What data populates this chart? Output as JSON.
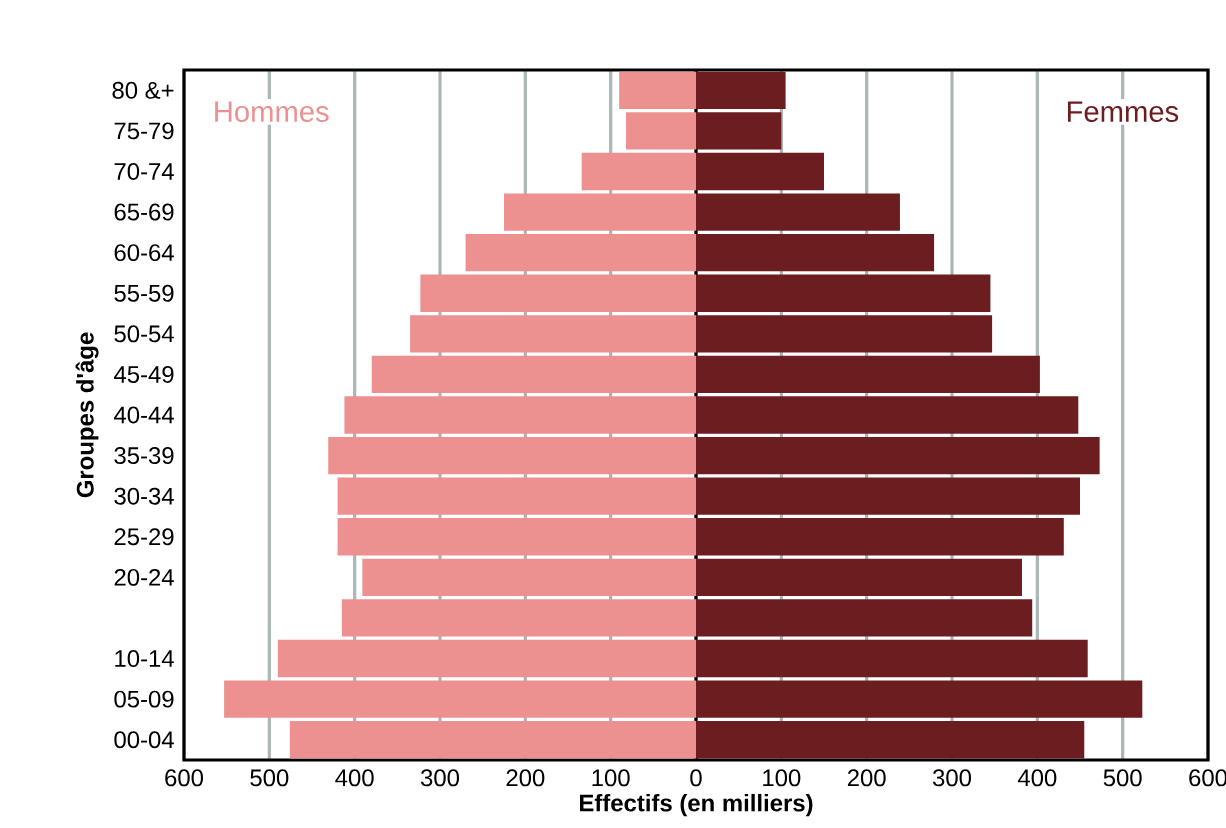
{
  "chart_data": {
    "type": "bar",
    "orientation": "horizontal",
    "stacked": true,
    "xlabel": "Effectifs (en milliers)",
    "ylabel": "Groupes d'âge",
    "categories": [
      "80 &+",
      "75-79",
      "70-74",
      "65-69",
      "60-64",
      "55-59",
      "50-54",
      "45-49",
      "40-44",
      "35-39",
      "30-34",
      "25-29",
      "20-24",
      null,
      "10-14",
      "05-09",
      "00-04"
    ],
    "series": [
      {
        "name": "Hommes",
        "color": "#ec9090",
        "values": [
          -90,
          -82,
          -134,
          -225,
          -270,
          -323,
          -335,
          -380,
          -412,
          -431,
          -420,
          -420,
          -391,
          -415,
          -490,
          -553,
          -476
        ]
      },
      {
        "name": "Femmes",
        "color": "#6b1d20",
        "values": [
          105,
          100,
          150,
          239,
          279,
          345,
          347,
          403,
          448,
          473,
          450,
          431,
          382,
          394,
          459,
          523,
          455
        ]
      }
    ],
    "xlim": [
      -600,
      600
    ],
    "xticks": [
      {
        "value": -600,
        "label": "600"
      },
      {
        "value": -500,
        "label": "500"
      },
      {
        "value": -400,
        "label": "400"
      },
      {
        "value": -300,
        "label": "300"
      },
      {
        "value": -200,
        "label": "200"
      },
      {
        "value": -100,
        "label": "100"
      },
      0,
      100,
      200,
      300,
      400,
      500,
      600
    ],
    "grid": "x",
    "legend": false
  }
}
